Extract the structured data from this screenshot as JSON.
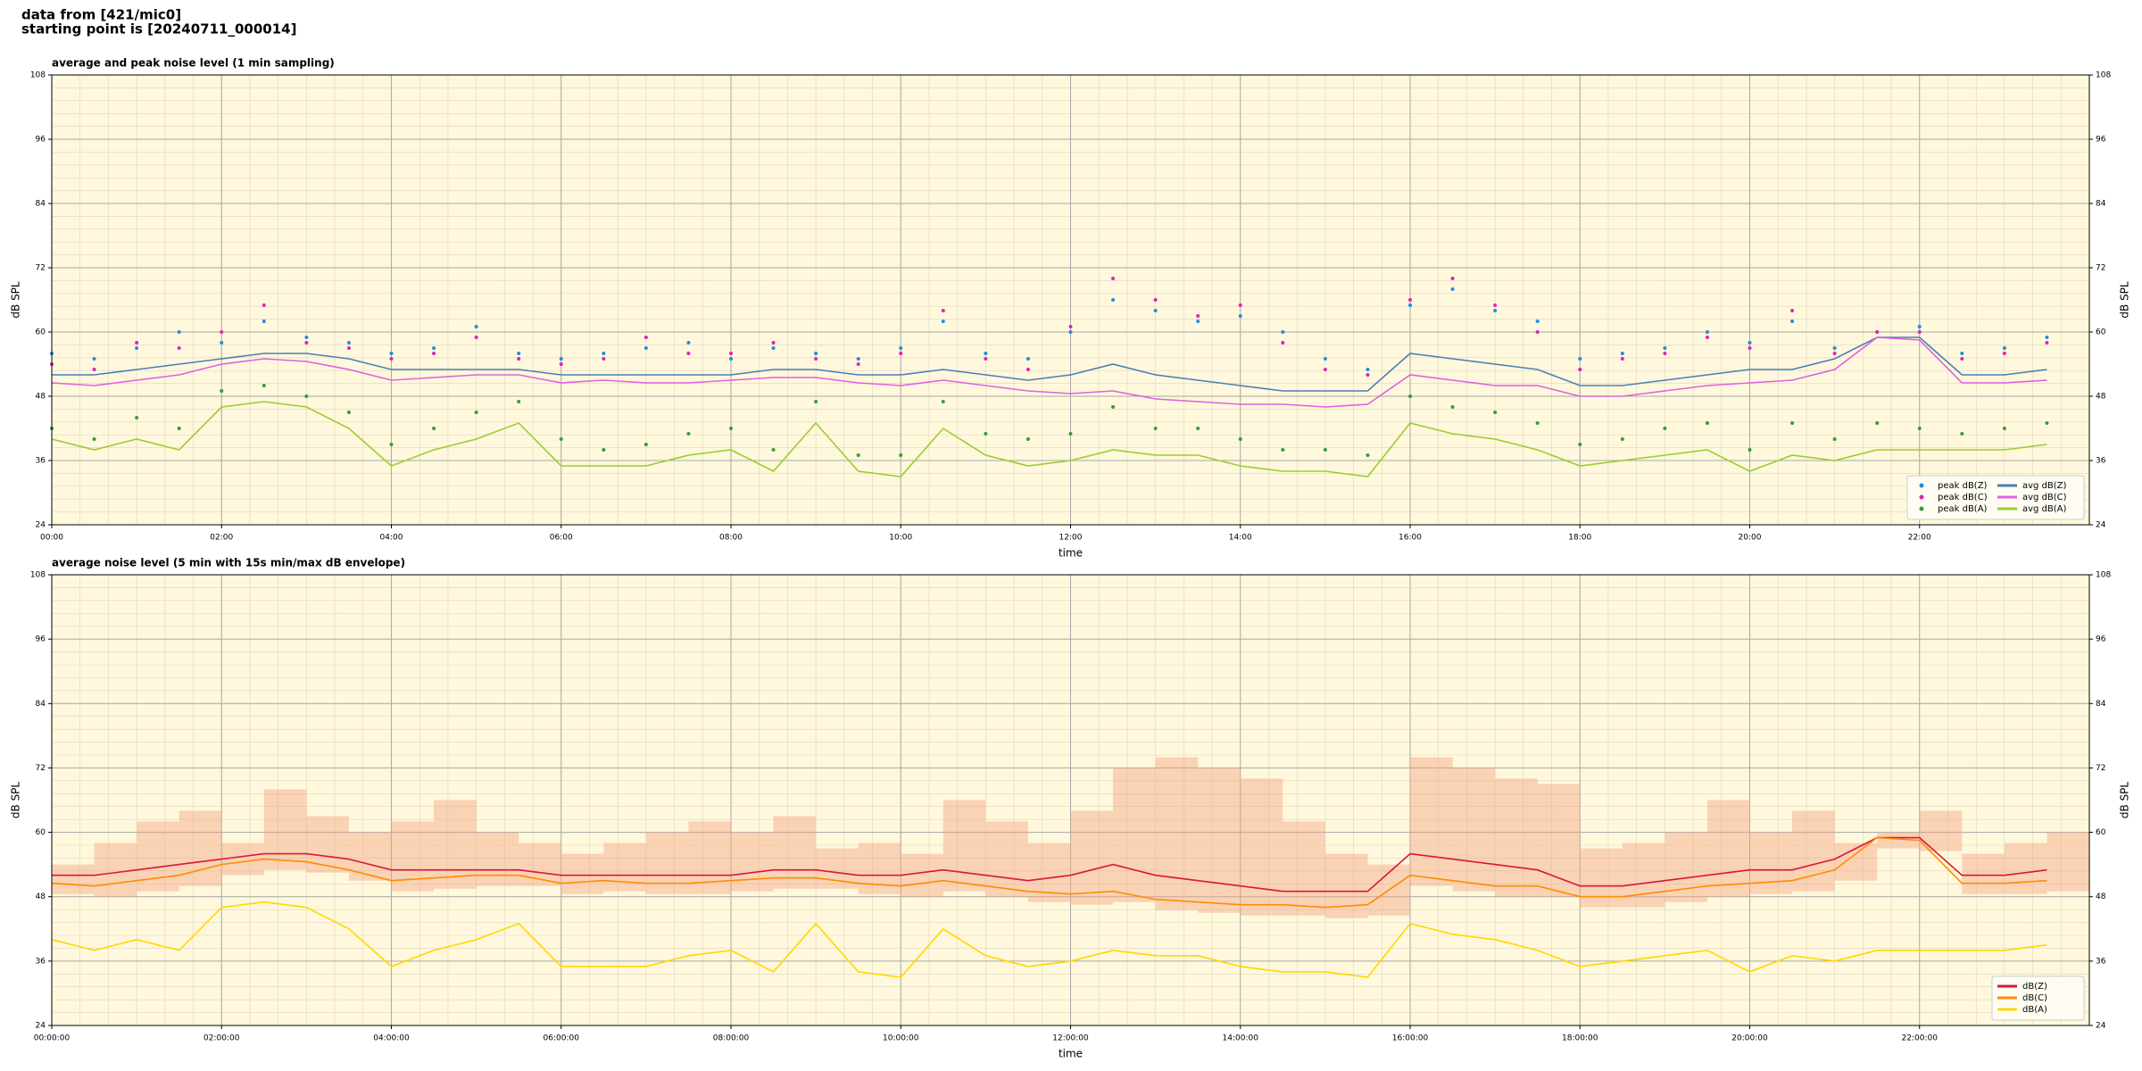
{
  "header": {
    "lines": [
      "data from [421/mic0]",
      "starting point is [20240711_000014]"
    ]
  },
  "chart_data": [
    {
      "type": "line",
      "title": "average and peak noise level (1 min sampling)",
      "x_label": "time",
      "y_label": "dB SPL",
      "background": "#fff8dc",
      "grid": true,
      "minor_grid": true,
      "legend": "lower right",
      "legend_columns": 2,
      "xlim": [
        0,
        24
      ],
      "ylim": [
        24,
        108
      ],
      "xticks": [
        {
          "value": 0,
          "label": "00:00"
        },
        {
          "value": 2,
          "label": "02:00"
        },
        {
          "value": 4,
          "label": "04:00"
        },
        {
          "value": 6,
          "label": "06:00"
        },
        {
          "value": 8,
          "label": "08:00"
        },
        {
          "value": 10,
          "label": "10:00"
        },
        {
          "value": 12,
          "label": "12:00"
        },
        {
          "value": 14,
          "label": "14:00"
        },
        {
          "value": 16,
          "label": "16:00"
        },
        {
          "value": 18,
          "label": "18:00"
        },
        {
          "value": 20,
          "label": "20:00"
        },
        {
          "value": 22,
          "label": "22:00"
        }
      ],
      "yticks": [
        24,
        36,
        48,
        60,
        72,
        84,
        96,
        108
      ],
      "x": [
        0,
        0.5,
        1,
        1.5,
        2,
        2.5,
        3,
        3.5,
        4,
        4.5,
        5,
        5.5,
        6,
        6.5,
        7,
        7.5,
        8,
        8.5,
        9,
        9.5,
        10,
        10.5,
        11,
        11.5,
        12,
        12.5,
        13,
        13.5,
        14,
        14.5,
        15,
        15.5,
        16,
        16.5,
        17,
        17.5,
        18,
        18.5,
        19,
        19.5,
        20,
        20.5,
        21,
        21.5,
        22,
        22.5,
        23,
        23.5
      ],
      "series": [
        {
          "name": "peak dB(Z)",
          "type": "scatter",
          "color": "#1f8fe0",
          "values": [
            56,
            55,
            57,
            60,
            58,
            62,
            59,
            58,
            56,
            57,
            61,
            56,
            55,
            56,
            57,
            58,
            55,
            57,
            56,
            55,
            57,
            62,
            56,
            55,
            60,
            66,
            64,
            62,
            63,
            60,
            55,
            53,
            65,
            68,
            64,
            62,
            55,
            56,
            57,
            60,
            58,
            62,
            57,
            60,
            61,
            56,
            57,
            59
          ]
        },
        {
          "name": "peak dB(C)",
          "type": "scatter",
          "color": "#e81eb4",
          "values": [
            54,
            53,
            58,
            57,
            60,
            65,
            58,
            57,
            55,
            56,
            59,
            55,
            54,
            55,
            59,
            56,
            56,
            58,
            55,
            54,
            56,
            64,
            55,
            53,
            61,
            70,
            66,
            63,
            65,
            58,
            53,
            52,
            66,
            70,
            65,
            60,
            53,
            55,
            56,
            59,
            57,
            64,
            56,
            60,
            60,
            55,
            56,
            58
          ]
        },
        {
          "name": "peak dB(A)",
          "type": "scatter",
          "color": "#3a9a3a",
          "values": [
            42,
            40,
            44,
            42,
            49,
            50,
            48,
            45,
            39,
            42,
            45,
            47,
            40,
            38,
            39,
            41,
            42,
            38,
            47,
            37,
            37,
            47,
            41,
            40,
            41,
            46,
            42,
            42,
            40,
            38,
            38,
            37,
            48,
            46,
            45,
            43,
            39,
            40,
            42,
            43,
            38,
            43,
            40,
            43,
            42,
            41,
            42,
            43
          ]
        },
        {
          "name": "avg dB(Z)",
          "type": "line",
          "color": "#4a7fb5",
          "values": [
            52,
            52,
            53,
            54,
            55,
            56,
            56,
            55,
            53,
            53,
            53,
            53,
            52,
            52,
            52,
            52,
            52,
            53,
            53,
            52,
            52,
            53,
            52,
            51,
            52,
            54,
            52,
            51,
            50,
            49,
            49,
            49,
            56,
            55,
            54,
            53,
            50,
            50,
            51,
            52,
            53,
            53,
            55,
            59,
            59,
            52,
            52,
            53
          ]
        },
        {
          "name": "avg dB(C)",
          "type": "line",
          "color": "#e060e0",
          "values": [
            50.5,
            50,
            51,
            52,
            54,
            55,
            54.5,
            53,
            51,
            51.5,
            52,
            52,
            50.5,
            51,
            50.5,
            50.5,
            51,
            51.5,
            51.5,
            50.5,
            50,
            51,
            50,
            49,
            48.5,
            49,
            47.5,
            47,
            46.5,
            46.5,
            46,
            46.5,
            52,
            51,
            50,
            50,
            48,
            48,
            49,
            50,
            50.5,
            51,
            53,
            59,
            58.5,
            50.5,
            50.5,
            51
          ]
        },
        {
          "name": "avg dB(A)",
          "type": "line",
          "color": "#9acd32",
          "values": [
            40,
            38,
            40,
            38,
            46,
            47,
            46,
            42,
            35,
            38,
            40,
            43,
            35,
            35,
            35,
            37,
            38,
            34,
            43,
            34,
            33,
            42,
            37,
            35,
            36,
            38,
            37,
            37,
            35,
            34,
            34,
            33,
            43,
            41,
            40,
            38,
            35,
            36,
            37,
            38,
            34,
            37,
            36,
            38,
            38,
            38,
            38,
            39
          ]
        }
      ]
    },
    {
      "type": "line",
      "title": "average noise level (5 min with 15s min/max dB envelope)",
      "x_label": "time",
      "y_label": "dB SPL",
      "background": "#fff8dc",
      "grid": true,
      "minor_grid": true,
      "legend": "lower right",
      "legend_columns": 1,
      "xlim": [
        0,
        24
      ],
      "ylim": [
        24,
        108
      ],
      "xticks": [
        {
          "value": 0,
          "label": "00:00:00"
        },
        {
          "value": 2,
          "label": "02:00:00"
        },
        {
          "value": 4,
          "label": "04:00:00"
        },
        {
          "value": 6,
          "label": "06:00:00"
        },
        {
          "value": 8,
          "label": "08:00:00"
        },
        {
          "value": 10,
          "label": "10:00:00"
        },
        {
          "value": 12,
          "label": "12:00:00"
        },
        {
          "value": 14,
          "label": "14:00:00"
        },
        {
          "value": 16,
          "label": "16:00:00"
        },
        {
          "value": 18,
          "label": "18:00:00"
        },
        {
          "value": 20,
          "label": "20:00:00"
        },
        {
          "value": 22,
          "label": "22:00:00"
        }
      ],
      "yticks": [
        24,
        36,
        48,
        60,
        72,
        84,
        96,
        108
      ],
      "x": [
        0,
        0.5,
        1,
        1.5,
        2,
        2.5,
        3,
        3.5,
        4,
        4.5,
        5,
        5.5,
        6,
        6.5,
        7,
        7.5,
        8,
        8.5,
        9,
        9.5,
        10,
        10.5,
        11,
        11.5,
        12,
        12.5,
        13,
        13.5,
        14,
        14.5,
        15,
        15.5,
        16,
        16.5,
        17,
        17.5,
        18,
        18.5,
        19,
        19.5,
        20,
        20.5,
        21,
        21.5,
        22,
        22.5,
        23,
        23.5
      ],
      "envelope": {
        "color": "#f4a582",
        "low": [
          48.5,
          48,
          49,
          50,
          52,
          53,
          52.5,
          51,
          49,
          49.5,
          50,
          50,
          48.5,
          49,
          48.5,
          48.5,
          49,
          49.5,
          49.5,
          48.5,
          48,
          49,
          48,
          47,
          46.5,
          47,
          45.5,
          45,
          44.5,
          44.5,
          44,
          44.5,
          50,
          49,
          48,
          48,
          46,
          46,
          47,
          48,
          48.5,
          49,
          51,
          57,
          56.5,
          48.5,
          48.5,
          49
        ],
        "high": [
          54,
          58,
          62,
          64,
          58,
          68,
          63,
          60,
          62,
          66,
          60,
          58,
          56,
          58,
          60,
          62,
          60,
          63,
          57,
          58,
          56,
          66,
          62,
          58,
          64,
          72,
          74,
          72,
          70,
          62,
          56,
          54,
          74,
          72,
          70,
          69,
          57,
          58,
          60,
          66,
          60,
          64,
          58,
          60,
          64,
          56,
          58,
          60
        ]
      },
      "series": [
        {
          "name": "dB(Z)",
          "type": "line",
          "color": "#dc143c",
          "values": [
            52,
            52,
            53,
            54,
            55,
            56,
            56,
            55,
            53,
            53,
            53,
            53,
            52,
            52,
            52,
            52,
            52,
            53,
            53,
            52,
            52,
            53,
            52,
            51,
            52,
            54,
            52,
            51,
            50,
            49,
            49,
            49,
            56,
            55,
            54,
            53,
            50,
            50,
            51,
            52,
            53,
            53,
            55,
            59,
            59,
            52,
            52,
            53
          ]
        },
        {
          "name": "dB(C)",
          "type": "line",
          "color": "#ff8c00",
          "values": [
            50.5,
            50,
            51,
            52,
            54,
            55,
            54.5,
            53,
            51,
            51.5,
            52,
            52,
            50.5,
            51,
            50.5,
            50.5,
            51,
            51.5,
            51.5,
            50.5,
            50,
            51,
            50,
            49,
            48.5,
            49,
            47.5,
            47,
            46.5,
            46.5,
            46,
            46.5,
            52,
            51,
            50,
            50,
            48,
            48,
            49,
            50,
            50.5,
            51,
            53,
            59,
            58.5,
            50.5,
            50.5,
            51
          ]
        },
        {
          "name": "dB(A)",
          "type": "line",
          "color": "#ffd700",
          "values": [
            40,
            38,
            40,
            38,
            46,
            47,
            46,
            42,
            35,
            38,
            40,
            43,
            35,
            35,
            35,
            37,
            38,
            34,
            43,
            34,
            33,
            42,
            37,
            35,
            36,
            38,
            37,
            37,
            35,
            34,
            34,
            33,
            43,
            41,
            40,
            38,
            35,
            36,
            37,
            38,
            34,
            37,
            36,
            38,
            38,
            38,
            38,
            39
          ]
        }
      ]
    }
  ]
}
